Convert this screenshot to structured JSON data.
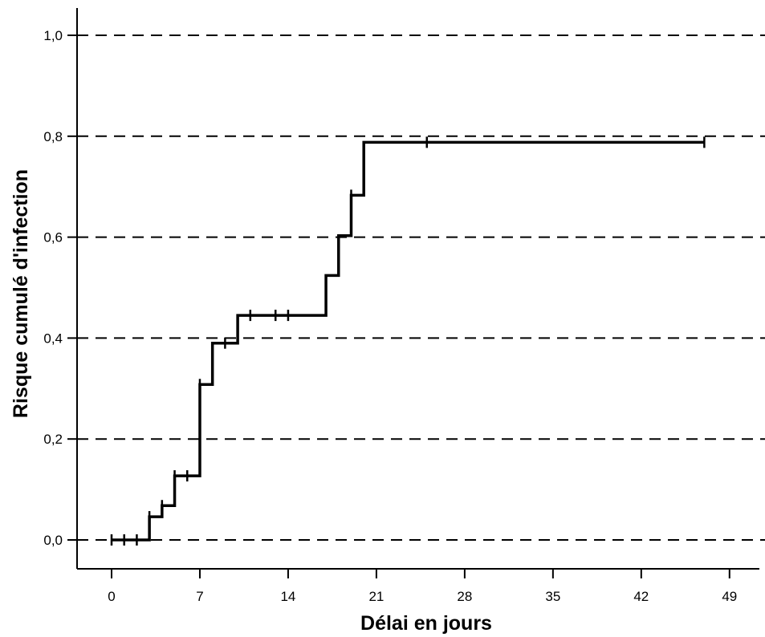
{
  "chart_data": {
    "type": "line",
    "subtype": "kaplan-meier-step",
    "xlabel": "Délai en jours",
    "ylabel": "Risque cumulé d'infection",
    "xlim": [
      0,
      49
    ],
    "ylim": [
      0,
      1.0
    ],
    "x_ticks": [
      0,
      7,
      14,
      21,
      28,
      35,
      42,
      49
    ],
    "x_tick_labels": [
      "0",
      "7",
      "14",
      "21",
      "28",
      "35",
      "42",
      "49"
    ],
    "y_ticks": [
      0,
      0.2,
      0.4,
      0.6,
      0.8,
      1.0
    ],
    "y_tick_labels": [
      "0,0",
      "0,2",
      "0,4",
      "0,6",
      "0,8",
      "1,0"
    ],
    "grid": "horizontal dashed",
    "series": [
      {
        "step_points": [
          {
            "x": 0,
            "y": 0
          },
          {
            "x": 3,
            "y": 0.046
          },
          {
            "x": 4,
            "y": 0.068
          },
          {
            "x": 5,
            "y": 0.127
          },
          {
            "x": 7,
            "y": 0.308
          },
          {
            "x": 8,
            "y": 0.39
          },
          {
            "x": 10,
            "y": 0.445
          },
          {
            "x": 17,
            "y": 0.524
          },
          {
            "x": 18,
            "y": 0.603
          },
          {
            "x": 19,
            "y": 0.683
          },
          {
            "x": 20,
            "y": 0.788
          }
        ],
        "end_x": 47,
        "censored": [
          {
            "x": 0,
            "y": 0
          },
          {
            "x": 1,
            "y": 0
          },
          {
            "x": 2,
            "y": 0
          },
          {
            "x": 3,
            "y": 0.046
          },
          {
            "x": 4,
            "y": 0.068
          },
          {
            "x": 5,
            "y": 0.127
          },
          {
            "x": 6,
            "y": 0.127
          },
          {
            "x": 7,
            "y": 0.308
          },
          {
            "x": 9,
            "y": 0.39
          },
          {
            "x": 11,
            "y": 0.445
          },
          {
            "x": 13,
            "y": 0.445
          },
          {
            "x": 14,
            "y": 0.445
          },
          {
            "x": 19,
            "y": 0.683
          },
          {
            "x": 25,
            "y": 0.788
          },
          {
            "x": 47,
            "y": 0.788
          }
        ]
      }
    ]
  }
}
